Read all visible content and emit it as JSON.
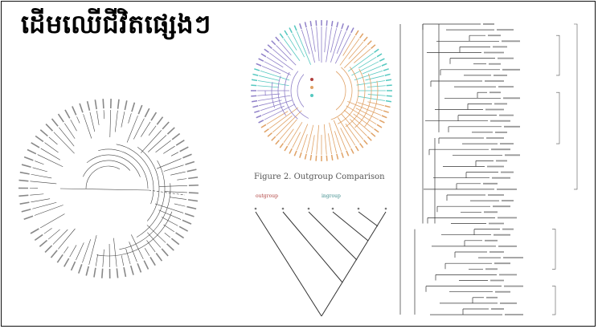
{
  "title": "ដើមឈើជីវិតផ្សេងៗ",
  "figure2": {
    "caption": "Figure 2. Outgroup Comparison",
    "outgroup_label": "outgroup",
    "ingroup_label": "ingroup"
  },
  "colors": {
    "circle_purple": "#8f80c8",
    "circle_orange": "#e0a266",
    "circle_cyan": "#55c8c0",
    "outgroup_red": "#b0403e",
    "ingroup_teal": "#3c8c8c",
    "line": "#444444"
  }
}
